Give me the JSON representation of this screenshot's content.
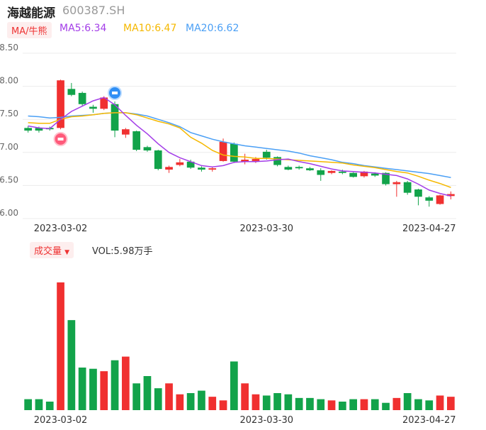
{
  "header": {
    "name": "海越能源",
    "code": "600387.SH",
    "ma_tag": "MA/牛熊",
    "ma5": "MA5:6.34",
    "ma10": "MA10:6.47",
    "ma20": "MA20:6.62",
    "ma5_color": "#a33de8",
    "ma10_color": "#f5b800",
    "ma20_color": "#4a9ff5"
  },
  "volume_panel": {
    "tag": "成交量",
    "vol_text": "VOL:5.98万手"
  },
  "colors": {
    "up": "#f03030",
    "down": "#12a34a"
  },
  "chart_data": {
    "type": "candlestick",
    "y_ticks": [
      "8.50",
      "8.00",
      "7.50",
      "7.00",
      "6.50",
      "6.00"
    ],
    "ylim": [
      6.0,
      8.5
    ],
    "x_labels": [
      {
        "label": "2023-03-02",
        "index": 3
      },
      {
        "label": "2023-03-30",
        "index": 22
      },
      {
        "label": "2023-04-27",
        "index": 37
      }
    ],
    "candles": [
      {
        "o": 7.37,
        "c": 7.33,
        "h": 7.4,
        "l": 7.3
      },
      {
        "o": 7.37,
        "c": 7.33,
        "h": 7.39,
        "l": 7.3
      },
      {
        "o": 7.37,
        "c": 7.35,
        "h": 7.39,
        "l": 7.33
      },
      {
        "o": 7.37,
        "c": 8.09,
        "h": 8.1,
        "l": 7.35
      },
      {
        "o": 7.96,
        "c": 7.87,
        "h": 8.05,
        "l": 7.85
      },
      {
        "o": 7.9,
        "c": 7.73,
        "h": 7.92,
        "l": 7.7
      },
      {
        "o": 7.69,
        "c": 7.66,
        "h": 7.72,
        "l": 7.6
      },
      {
        "o": 7.66,
        "c": 7.83,
        "h": 7.85,
        "l": 7.64
      },
      {
        "o": 7.73,
        "c": 7.33,
        "h": 7.77,
        "l": 7.23
      },
      {
        "o": 7.27,
        "c": 7.35,
        "h": 7.37,
        "l": 7.22
      },
      {
        "o": 7.32,
        "c": 7.04,
        "h": 7.33,
        "l": 7.02
      },
      {
        "o": 7.08,
        "c": 7.03,
        "h": 7.1,
        "l": 7.01
      },
      {
        "o": 7.03,
        "c": 6.75,
        "h": 7.04,
        "l": 6.73
      },
      {
        "o": 6.74,
        "c": 6.78,
        "h": 6.8,
        "l": 6.69
      },
      {
        "o": 6.81,
        "c": 6.85,
        "h": 6.9,
        "l": 6.79
      },
      {
        "o": 6.86,
        "c": 6.77,
        "h": 6.89,
        "l": 6.75
      },
      {
        "o": 6.77,
        "c": 6.74,
        "h": 6.79,
        "l": 6.71
      },
      {
        "o": 6.74,
        "c": 6.76,
        "h": 6.78,
        "l": 6.71
      },
      {
        "o": 6.87,
        "c": 7.16,
        "h": 7.21,
        "l": 6.86
      },
      {
        "o": 7.13,
        "c": 6.86,
        "h": 7.15,
        "l": 6.84
      },
      {
        "o": 6.86,
        "c": 6.89,
        "h": 6.98,
        "l": 6.82
      },
      {
        "o": 6.87,
        "c": 6.9,
        "h": 6.93,
        "l": 6.84
      },
      {
        "o": 7.01,
        "c": 6.92,
        "h": 7.04,
        "l": 6.89
      },
      {
        "o": 6.93,
        "c": 6.81,
        "h": 6.94,
        "l": 6.79
      },
      {
        "o": 6.78,
        "c": 6.74,
        "h": 6.8,
        "l": 6.73
      },
      {
        "o": 6.78,
        "c": 6.76,
        "h": 6.8,
        "l": 6.74
      },
      {
        "o": 6.76,
        "c": 6.73,
        "h": 6.78,
        "l": 6.72
      },
      {
        "o": 6.73,
        "c": 6.66,
        "h": 6.76,
        "l": 6.57
      },
      {
        "o": 6.69,
        "c": 6.72,
        "h": 6.73,
        "l": 6.67
      },
      {
        "o": 6.71,
        "c": 6.69,
        "h": 6.74,
        "l": 6.67
      },
      {
        "o": 6.69,
        "c": 6.63,
        "h": 6.7,
        "l": 6.62
      },
      {
        "o": 6.64,
        "c": 6.71,
        "h": 6.72,
        "l": 6.62
      },
      {
        "o": 6.68,
        "c": 6.65,
        "h": 6.7,
        "l": 6.63
      },
      {
        "o": 6.69,
        "c": 6.52,
        "h": 6.7,
        "l": 6.5
      },
      {
        "o": 6.52,
        "c": 6.55,
        "h": 6.57,
        "l": 6.33
      },
      {
        "o": 6.55,
        "c": 6.39,
        "h": 6.57,
        "l": 6.36
      },
      {
        "o": 6.44,
        "c": 6.33,
        "h": 6.45,
        "l": 6.2
      },
      {
        "o": 6.32,
        "c": 6.27,
        "h": 6.34,
        "l": 6.18
      },
      {
        "o": 6.22,
        "c": 6.35,
        "h": 6.36,
        "l": 6.21
      },
      {
        "o": 6.34,
        "c": 6.37,
        "h": 6.41,
        "l": 6.29
      }
    ],
    "volumes": [
      0.9,
      0.9,
      0.7,
      10.5,
      7.4,
      3.5,
      3.4,
      3.2,
      4.1,
      4.4,
      2.2,
      2.8,
      1.8,
      2.2,
      1.3,
      1.4,
      1.6,
      1.1,
      0.8,
      4.0,
      2.2,
      1.3,
      1.2,
      1.4,
      1.3,
      1.0,
      1.0,
      0.9,
      0.8,
      0.7,
      0.9,
      0.9,
      0.9,
      0.6,
      1.0,
      1.4,
      0.9,
      0.8,
      1.2,
      1.1
    ],
    "vol_max": 10.5,
    "ma5": [
      7.4,
      7.37,
      7.36,
      7.5,
      7.62,
      7.7,
      7.78,
      7.83,
      7.72,
      7.56,
      7.41,
      7.28,
      7.13,
      7.0,
      6.92,
      6.86,
      6.8,
      6.78,
      6.8,
      6.85,
      6.86,
      6.86,
      6.87,
      6.89,
      6.9,
      6.86,
      6.83,
      6.79,
      6.75,
      6.72,
      6.71,
      6.7,
      6.69,
      6.67,
      6.65,
      6.6,
      6.52,
      6.43,
      6.38,
      6.34
    ],
    "ma10": [
      7.45,
      7.44,
      7.44,
      7.5,
      7.54,
      7.55,
      7.57,
      7.59,
      7.6,
      7.6,
      7.57,
      7.52,
      7.47,
      7.43,
      7.37,
      7.23,
      7.14,
      7.03,
      6.96,
      6.94,
      6.93,
      6.91,
      6.91,
      6.9,
      6.89,
      6.88,
      6.87,
      6.86,
      6.85,
      6.84,
      6.81,
      6.79,
      6.77,
      6.74,
      6.71,
      6.69,
      6.64,
      6.58,
      6.53,
      6.47
    ],
    "ma20": [
      7.55,
      7.54,
      7.52,
      7.53,
      7.55,
      7.56,
      7.57,
      7.59,
      7.6,
      7.6,
      7.58,
      7.55,
      7.5,
      7.45,
      7.39,
      7.3,
      7.25,
      7.2,
      7.16,
      7.13,
      7.1,
      7.08,
      7.06,
      7.04,
      7.02,
      6.99,
      6.95,
      6.92,
      6.89,
      6.85,
      6.83,
      6.8,
      6.78,
      6.76,
      6.74,
      6.72,
      6.7,
      6.68,
      6.65,
      6.62
    ]
  }
}
